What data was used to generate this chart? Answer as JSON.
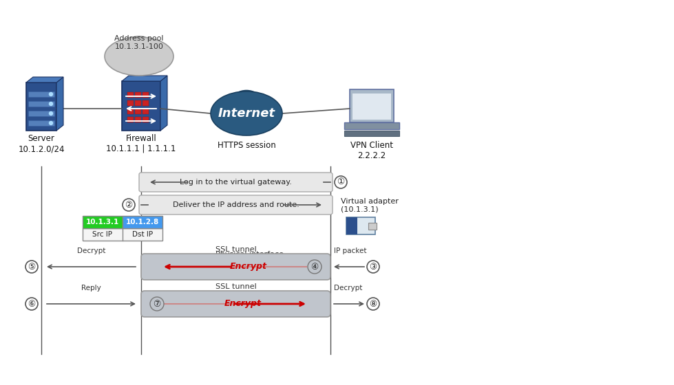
{
  "bg_color": "#ffffff",
  "server_label": "Server\n10.1.2.0/24",
  "firewall_label": "Firewall\n10.1.1.1 | 1.1.1.1",
  "https_label": "HTTPS session",
  "vpn_client_label": "VPN Client\n2.2.2.2",
  "cloud_label": "Address pool\n10.1.3.1-100",
  "internet_text": "Internet",
  "virtual_adapter_label": "Virtual adapter\n(10.1.3.1)",
  "physical_interface_label": "Physical interface\n(2.2.2.2)",
  "msg1": "Log in to the virtual gateway.",
  "msg2": "Deliver the IP address and route.",
  "encrypt1": "Encrypt",
  "encrypt2": "Encrypt",
  "ssl_tunnel": "SSL tunnel",
  "ip_packet": "IP packet",
  "decrypt1": "Decrypt",
  "decrypt2": "Decrypt",
  "reply": "Reply",
  "step1": "①",
  "step2": "②",
  "step3": "③",
  "step4": "④",
  "step5": "⑤",
  "step6": "⑥",
  "step7": "⑦",
  "step8": "⑧",
  "src_ip": "10.1.3.1",
  "dst_ip": "10.1.2.8",
  "src_label": "Src IP",
  "dst_label": "Dst IP",
  "gray": "#888888",
  "dark_gray": "#555555",
  "red_color": "#cc0000",
  "tunnel_fill": "#c0c5cc",
  "tunnel_edge": "#999999",
  "green_fill": "#22cc22",
  "blue_cell": "#4499ee",
  "server_blue": "#2b4f8c",
  "fw_blue": "#2b4f8c",
  "internet_blue": "#2a5a80",
  "table_bg": "#f5f5f5",
  "msg_bg": "#e8e8e8",
  "msg_edge": "#aaaaaa"
}
